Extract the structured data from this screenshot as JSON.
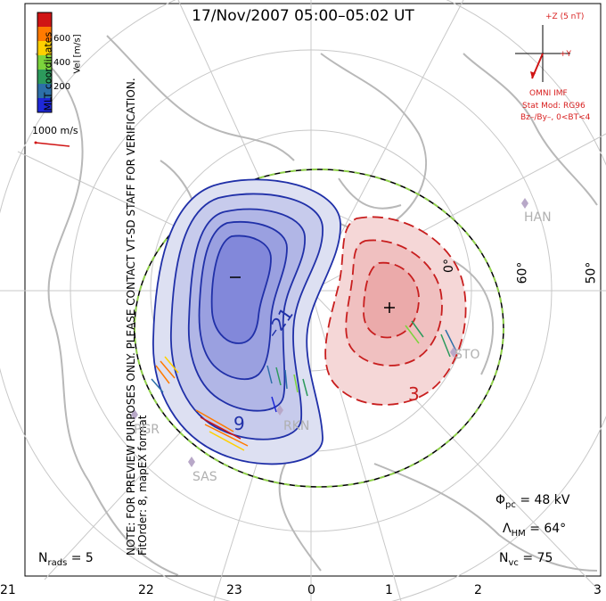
{
  "title": "17/Nov/2007 05:00–05:02 UT",
  "note_line1": "NOTE: FOR PREVIEW PURPOSES ONLY. PLEASE CONTACT VT-SD STAFF FOR VERIFICATION.",
  "note_line2": "FitOrder: 8, mapEX format",
  "coordinates_label": "MLT coordinates",
  "colorbar": {
    "label": "Vel [m/s]",
    "ticks": [
      "600",
      "400",
      "200"
    ],
    "colors": [
      "#d01414",
      "#ff7a00",
      "#ffd000",
      "#7cd43c",
      "#2c9a5c",
      "#2c6fa8",
      "#1e28d8"
    ]
  },
  "reference_vector": "1000 m/s",
  "imf": {
    "z_label": "+Z (5 nT)",
    "y_label": "+Y",
    "title": "OMNI IMF",
    "model": "Stat Mod: RG96",
    "condition": "Bz–/By–, 0<BT<4"
  },
  "mlt_ticks": [
    "21",
    "22",
    "23",
    "0",
    "1",
    "2",
    "3"
  ],
  "latitude_labels": [
    "0°",
    "60°",
    "50°"
  ],
  "sites": [
    "HAN",
    "STO",
    "RKN",
    "PGR",
    "SAS"
  ],
  "contour_labels": [
    "–21",
    "9",
    "3",
    "–",
    "+"
  ],
  "stats": {
    "phi_symbol": "Φ",
    "phi_sub": "pc",
    "phi_value": "= 48 kV",
    "lambda_symbol": "Λ",
    "lambda_sub": "HM",
    "lambda_value": "= 64°",
    "nvc_symbol": "N",
    "nvc_sub": "vc",
    "nvc_value": "= 75",
    "nrads_symbol": "N",
    "nrads_sub": "rads",
    "nrads_value": "= 5"
  }
}
